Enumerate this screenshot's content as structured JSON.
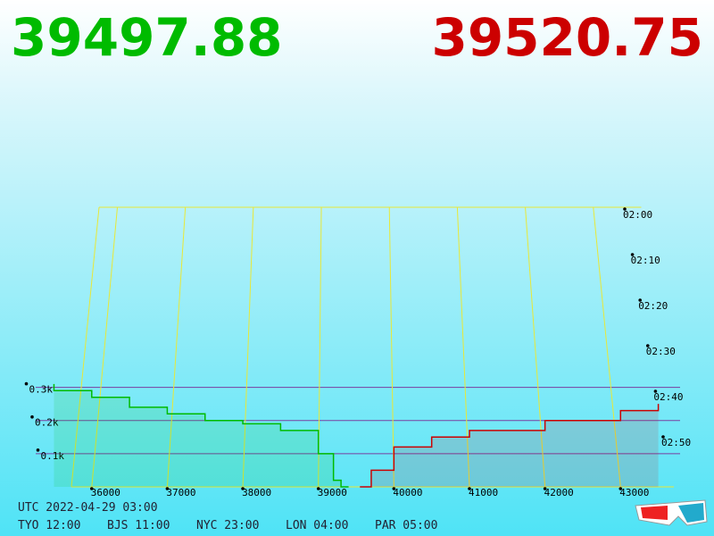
{
  "header": {
    "bid_price": "39497.88",
    "ask_price": "39520.75"
  },
  "chart_data": {
    "type": "depth",
    "xlim": [
      35400,
      43800
    ],
    "xticks": [
      36000,
      37000,
      38000,
      39000,
      40000,
      41000,
      42000,
      43000
    ],
    "ylim": [
      0,
      0.35
    ],
    "yticks": [
      {
        "value": 0.1,
        "label": "0.1k"
      },
      {
        "value": 0.2,
        "label": "0.2k"
      },
      {
        "value": 0.3,
        "label": "0.3k"
      }
    ],
    "time_labels": [
      "02:00",
      "02:10",
      "02:20",
      "02:30",
      "02:40",
      "02:50"
    ],
    "series": [
      {
        "color": "#00bb00",
        "x": [
          39400,
          39300,
          39200,
          39000,
          38500,
          38000,
          37500,
          37000,
          36500,
          36000,
          35500
        ],
        "values": [
          0,
          0.02,
          0.1,
          0.17,
          0.19,
          0.2,
          0.22,
          0.24,
          0.27,
          0.29,
          0.31
        ]
      },
      {
        "color": "#cc0000",
        "x": [
          39550,
          39700,
          40000,
          40500,
          41000,
          42000,
          43000,
          43500
        ],
        "values": [
          0,
          0.05,
          0.12,
          0.15,
          0.17,
          0.2,
          0.23,
          0.25
        ]
      }
    ]
  },
  "footer": {
    "utc": "UTC 2022-04-29 03:00",
    "zones": [
      "TYO 12:00",
      "BJS 11:00",
      "NYC 23:00",
      "LON 04:00",
      "PAR 05:00"
    ]
  }
}
